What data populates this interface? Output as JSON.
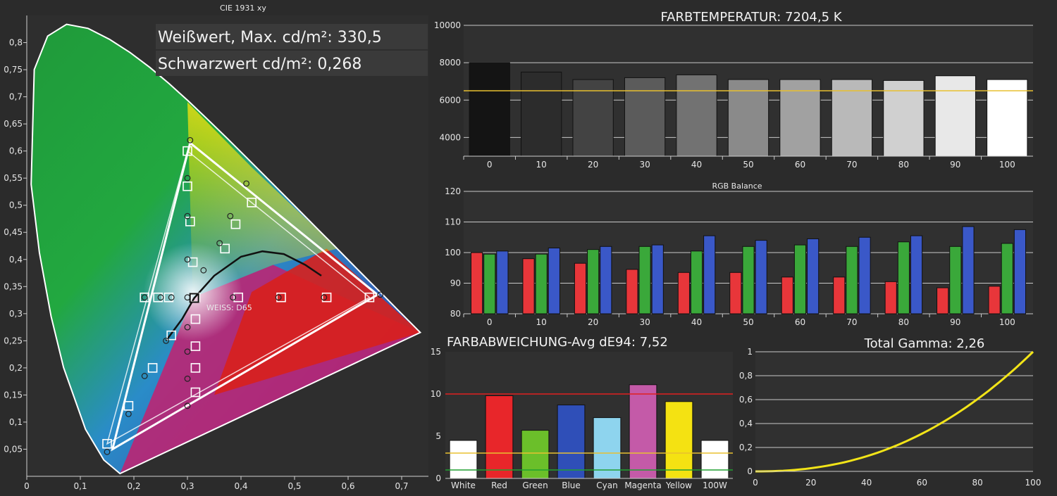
{
  "colors": {
    "bg": "#2b2b2b",
    "panel": "#303030",
    "grid": "#c8c8c8",
    "target": "#e8c030",
    "gamma_curve": "#f2e418",
    "red": "#e8363a",
    "green": "#3aa83a",
    "blue": "#3a58c8"
  },
  "cie": {
    "title": "CIE 1931 xy",
    "white_label": "Weißwert, Max. cd/m²: 330,5",
    "black_label": "Schwarzwert cd/m²: 0,268",
    "whitepoint_label": "WEISS: D65",
    "x_ticks": [
      "0",
      "0,1",
      "0,2",
      "0,3",
      "0,4",
      "0,5",
      "0,6",
      "0,7"
    ],
    "y_ticks": [
      "0,05",
      "0,1",
      "0,15",
      "0,2",
      "0,25",
      "0,3",
      "0,35",
      "0,4",
      "0,45",
      "0,5",
      "0,55",
      "0,6",
      "0,65",
      "0,7",
      "0,75",
      "0,8"
    ]
  },
  "chart_data": [
    {
      "type": "scatter",
      "title": "CIE 1931 xy",
      "xlim": [
        0,
        0.75
      ],
      "ylim": [
        0,
        0.85
      ],
      "target_gamut": [
        [
          0.64,
          0.33
        ],
        [
          0.3,
          0.6
        ],
        [
          0.15,
          0.06
        ]
      ],
      "measured_gamut": [
        [
          0.655,
          0.335
        ],
        [
          0.305,
          0.615
        ],
        [
          0.16,
          0.05
        ]
      ],
      "measured_points": [
        [
          0.305,
          0.62
        ],
        [
          0.3,
          0.55
        ],
        [
          0.3,
          0.48
        ],
        [
          0.3,
          0.4
        ],
        [
          0.33,
          0.38
        ],
        [
          0.36,
          0.43
        ],
        [
          0.38,
          0.48
        ],
        [
          0.41,
          0.54
        ],
        [
          0.22,
          0.33
        ],
        [
          0.25,
          0.33
        ],
        [
          0.27,
          0.33
        ],
        [
          0.3,
          0.33
        ],
        [
          0.385,
          0.33
        ],
        [
          0.47,
          0.33
        ],
        [
          0.555,
          0.33
        ],
        [
          0.66,
          0.335
        ],
        [
          0.3,
          0.275
        ],
        [
          0.3,
          0.23
        ],
        [
          0.3,
          0.18
        ],
        [
          0.3,
          0.13
        ],
        [
          0.22,
          0.185
        ],
        [
          0.19,
          0.115
        ],
        [
          0.15,
          0.045
        ],
        [
          0.26,
          0.25
        ]
      ],
      "target_points": [
        [
          0.3,
          0.6
        ],
        [
          0.3,
          0.535
        ],
        [
          0.305,
          0.47
        ],
        [
          0.31,
          0.395
        ],
        [
          0.39,
          0.465
        ],
        [
          0.42,
          0.505
        ],
        [
          0.37,
          0.42
        ],
        [
          0.22,
          0.33
        ],
        [
          0.245,
          0.33
        ],
        [
          0.265,
          0.33
        ],
        [
          0.315,
          0.33
        ],
        [
          0.395,
          0.33
        ],
        [
          0.475,
          0.33
        ],
        [
          0.56,
          0.33
        ],
        [
          0.64,
          0.33
        ],
        [
          0.315,
          0.29
        ],
        [
          0.27,
          0.26
        ],
        [
          0.315,
          0.24
        ],
        [
          0.315,
          0.2
        ],
        [
          0.315,
          0.155
        ],
        [
          0.235,
          0.2
        ],
        [
          0.19,
          0.13
        ],
        [
          0.15,
          0.06
        ]
      ],
      "whitepoint": [
        0.3127,
        0.329
      ]
    },
    {
      "type": "bar",
      "title": "FARBTEMPERATUR: 7204,5 K",
      "categories": [
        "0",
        "10",
        "20",
        "30",
        "40",
        "50",
        "60",
        "70",
        "80",
        "90",
        "100"
      ],
      "values": [
        8000,
        7500,
        7100,
        7200,
        7350,
        7100,
        7100,
        7100,
        7050,
        7300,
        7100
      ],
      "target": 6500,
      "ylim": [
        3000,
        10000
      ],
      "yticks": [
        "4000",
        "6000",
        "8000",
        "10000"
      ]
    },
    {
      "type": "bar",
      "title": "RGB Balance",
      "categories": [
        "0",
        "10",
        "20",
        "30",
        "40",
        "50",
        "60",
        "70",
        "80",
        "90",
        "100"
      ],
      "ylim": [
        80,
        120
      ],
      "yticks": [
        "80",
        "90",
        "100",
        "110",
        "120"
      ],
      "series": [
        {
          "values": [
            100,
            98,
            96.5,
            94.5,
            93.5,
            93.5,
            92,
            92,
            90.5,
            88.5,
            89
          ]
        },
        {
          "values": [
            99.5,
            99.5,
            101,
            102,
            100.5,
            102,
            102.5,
            102,
            103.5,
            102,
            103
          ]
        },
        {
          "values": [
            100.5,
            101.5,
            102,
            102.5,
            105.5,
            104,
            104.5,
            105,
            105.5,
            108.5,
            107.5
          ]
        }
      ]
    },
    {
      "type": "bar",
      "title": "FARBABWEICHUNG-Avg dE94: 7,52",
      "categories": [
        "White",
        "Red",
        "Green",
        "Blue",
        "Cyan",
        "Magenta",
        "Yellow",
        "100W"
      ],
      "values": [
        4.5,
        9.8,
        5.7,
        8.7,
        7.2,
        11.1,
        9.1,
        4.5
      ],
      "bar_colors": [
        "#ffffff",
        "#e8262a",
        "#6bbf2a",
        "#2f4fb8",
        "#8ed4ee",
        "#c45aa8",
        "#f4e212",
        "#ffffff"
      ],
      "ylim": [
        0,
        15
      ],
      "yticks": [
        "0",
        "5",
        "10",
        "15"
      ],
      "reference_lines": [
        10,
        3,
        1
      ]
    },
    {
      "type": "line",
      "title": "Total Gamma: 2,26",
      "gamma": 2.26,
      "xlim": [
        0,
        100
      ],
      "ylim": [
        0,
        1
      ],
      "xticks": [
        "0",
        "20",
        "40",
        "60",
        "80",
        "100"
      ],
      "yticks": [
        "0",
        "0,2",
        "0,4",
        "0,6",
        "0,8",
        "1"
      ]
    }
  ]
}
